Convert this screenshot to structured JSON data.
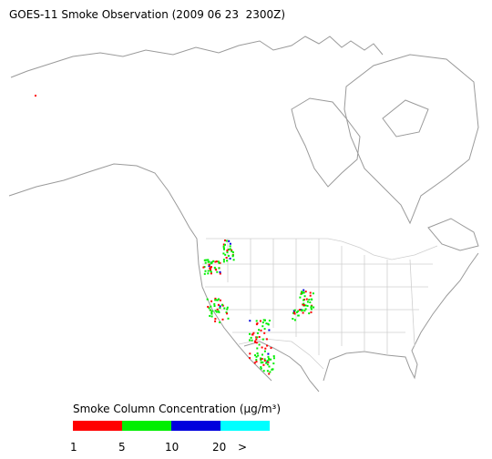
{
  "title": "GOES-11 Smoke Observation (2009 06 23  2300Z)",
  "legend": {
    "title": "Smoke Column Concentration (μg/m³)",
    "colors": [
      "#ff0000",
      "#00ee00",
      "#0000dd",
      "#00ffff"
    ],
    "labels": [
      "1",
      "5",
      "10",
      "20",
      ">"
    ]
  }
}
